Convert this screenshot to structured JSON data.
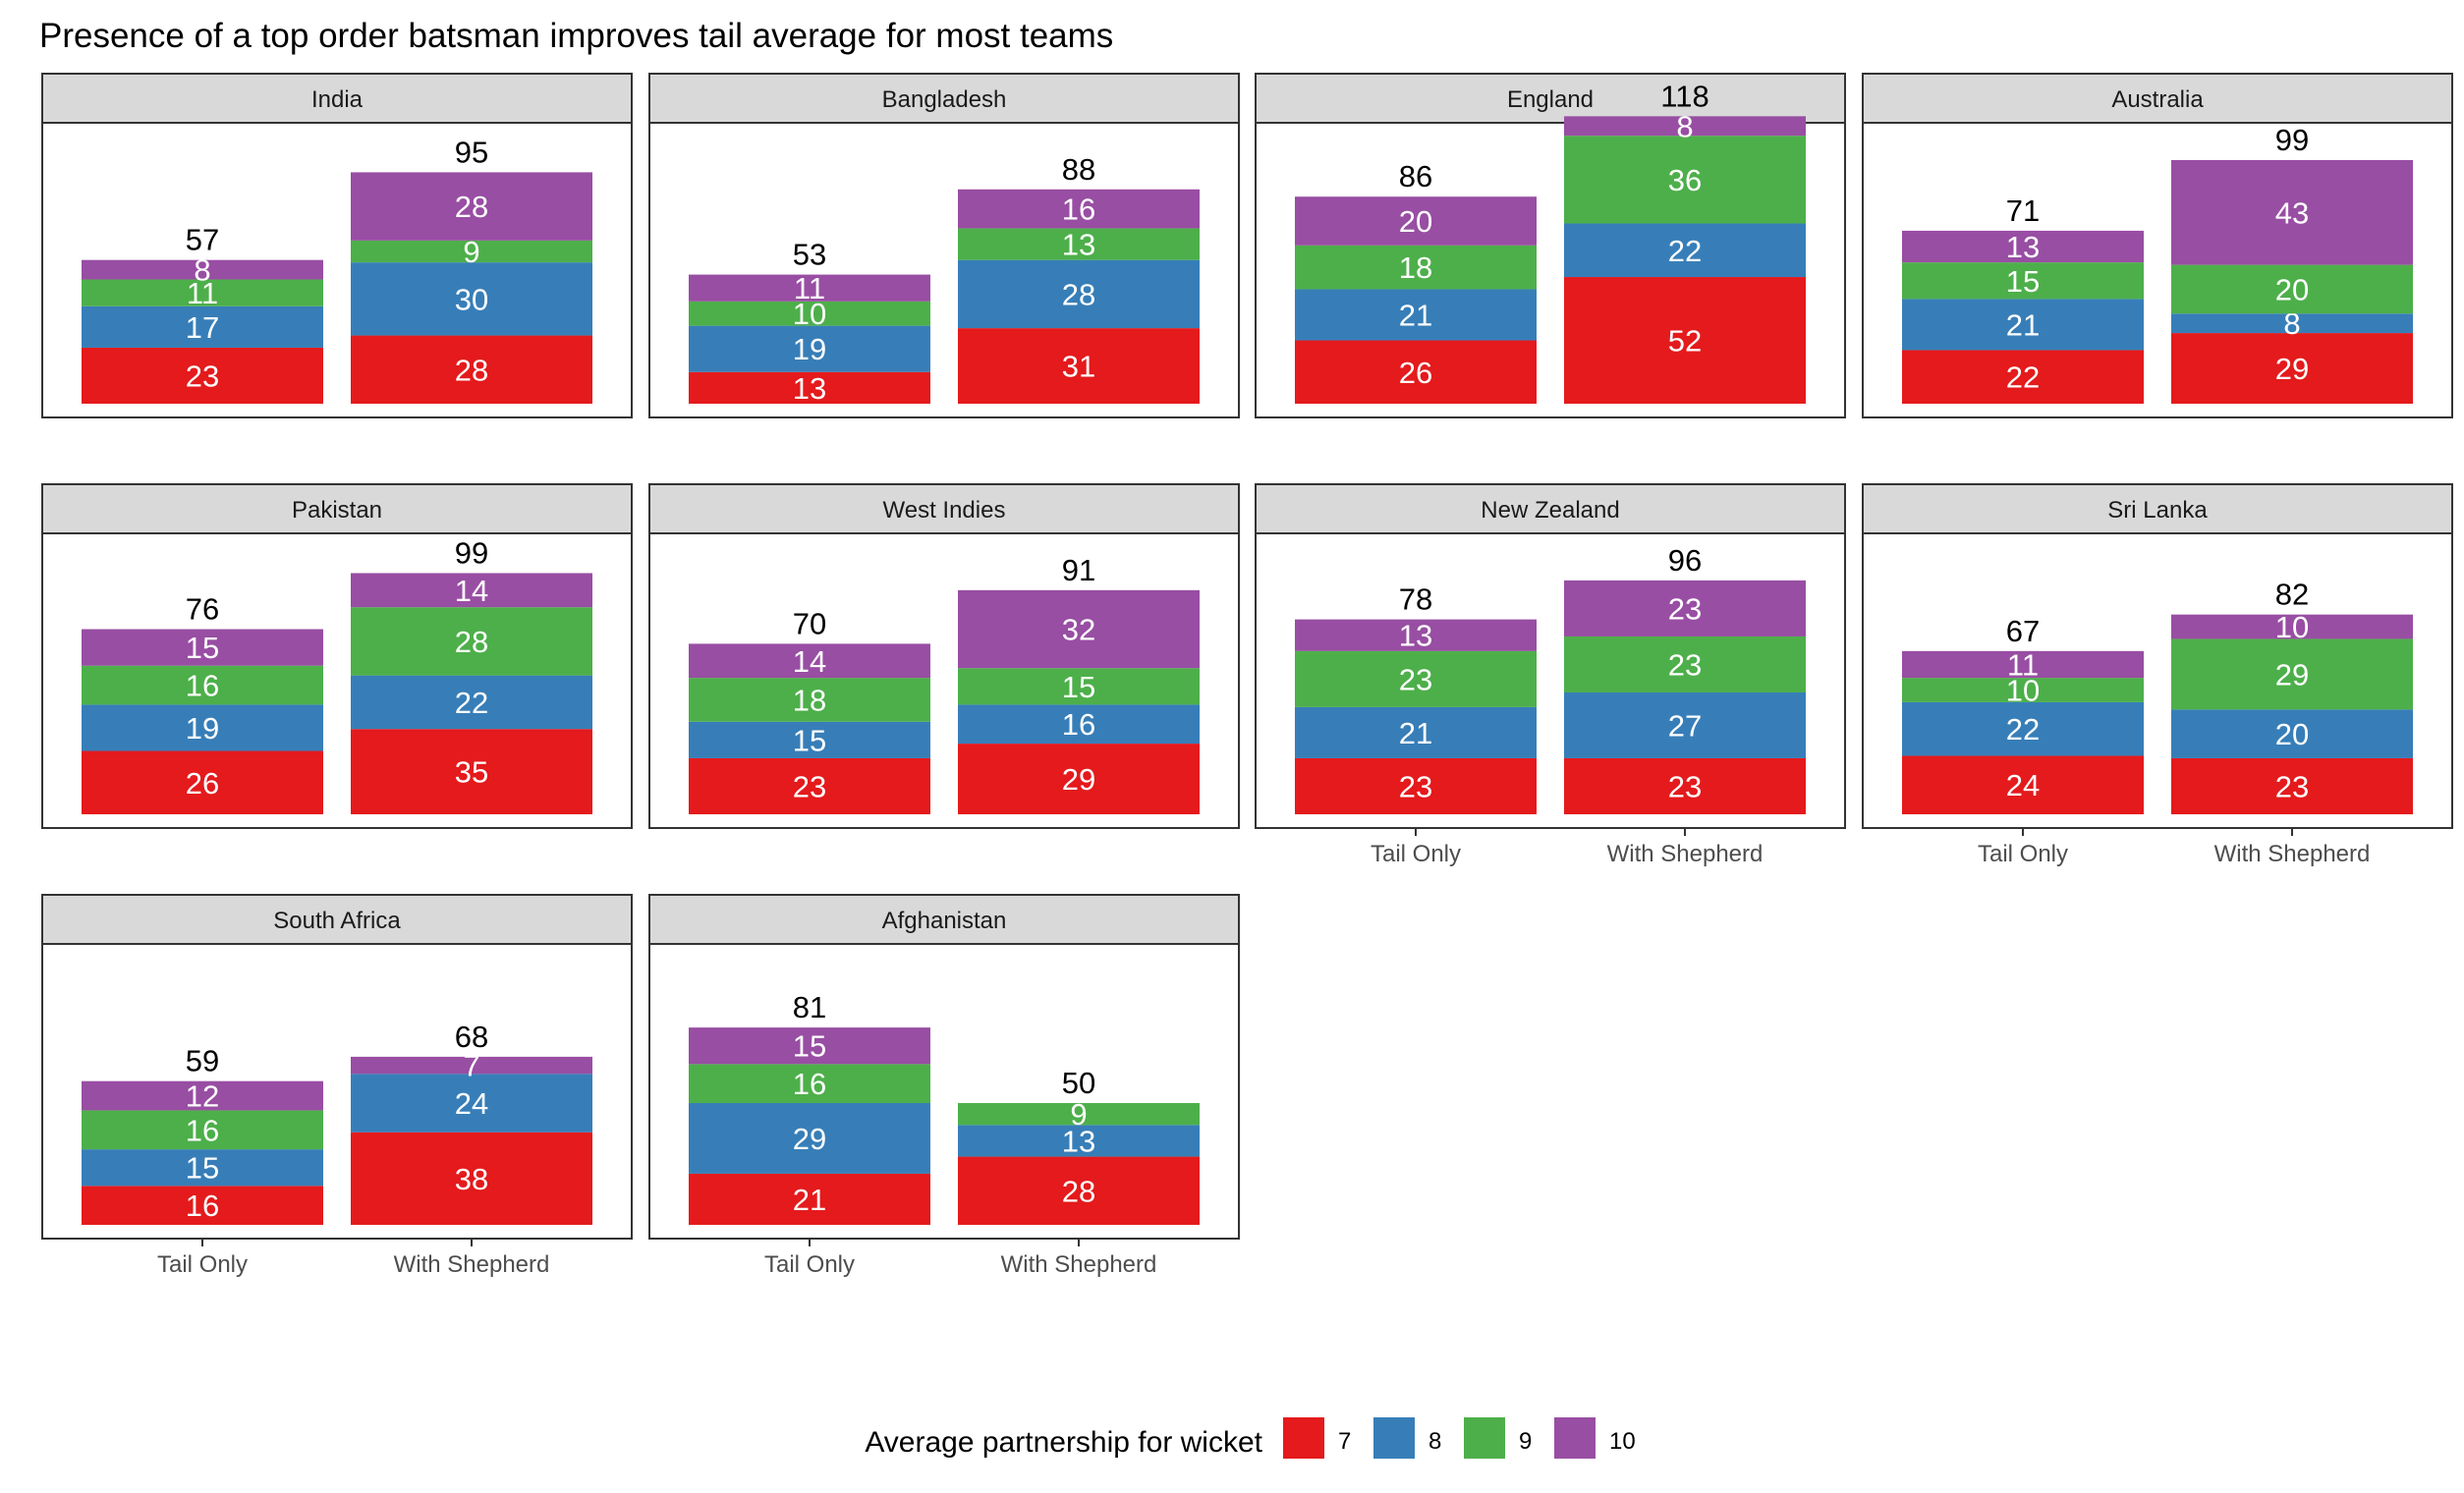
{
  "title": "Presence of a top order batsman improves tail average for most teams",
  "legend": {
    "title": "Average partnership for wicket",
    "placement": "bottom",
    "items": [
      {
        "key": "7",
        "label": "7",
        "color": "#E41A1C"
      },
      {
        "key": "8",
        "label": "8",
        "color": "#377EB8"
      },
      {
        "key": "9",
        "label": "9",
        "color": "#4DAF4A"
      },
      {
        "key": "10",
        "label": "10",
        "color": "#984EA3"
      }
    ]
  },
  "chart_data": {
    "type": "bar",
    "stacked": true,
    "faceted": true,
    "grid": false,
    "categories": [
      "Tail Only",
      "With Shepherd"
    ],
    "series_order": [
      "7",
      "8",
      "9",
      "10"
    ],
    "colors": {
      "7": "#E41A1C",
      "8": "#377EB8",
      "9": "#4DAF4A",
      "10": "#984EA3"
    },
    "facets": [
      {
        "team": "India",
        "bars": [
          {
            "category": "Tail Only",
            "total": 57,
            "values": {
              "7": 23,
              "8": 17,
              "9": 11,
              "10": 8
            }
          },
          {
            "category": "With Shepherd",
            "total": 95,
            "values": {
              "7": 28,
              "8": 30,
              "9": 9,
              "10": 28
            }
          }
        ]
      },
      {
        "team": "Bangladesh",
        "bars": [
          {
            "category": "Tail Only",
            "total": 53,
            "values": {
              "7": 13,
              "8": 19,
              "9": 10,
              "10": 11
            }
          },
          {
            "category": "With Shepherd",
            "total": 88,
            "values": {
              "7": 31,
              "8": 28,
              "9": 13,
              "10": 16
            }
          }
        ]
      },
      {
        "team": "England",
        "bars": [
          {
            "category": "Tail Only",
            "total": 86,
            "values": {
              "7": 26,
              "8": 21,
              "9": 18,
              "10": 20
            }
          },
          {
            "category": "With Shepherd",
            "total": 118,
            "values": {
              "7": 52,
              "8": 22,
              "9": 36,
              "10": 8
            }
          }
        ]
      },
      {
        "team": "Australia",
        "bars": [
          {
            "category": "Tail Only",
            "total": 71,
            "values": {
              "7": 22,
              "8": 21,
              "9": 15,
              "10": 13
            }
          },
          {
            "category": "With Shepherd",
            "total": 99,
            "values": {
              "7": 29,
              "8": 8,
              "9": 20,
              "10": 43
            }
          }
        ]
      },
      {
        "team": "Pakistan",
        "bars": [
          {
            "category": "Tail Only",
            "total": 76,
            "values": {
              "7": 26,
              "8": 19,
              "9": 16,
              "10": 15
            }
          },
          {
            "category": "With Shepherd",
            "total": 99,
            "values": {
              "7": 35,
              "8": 22,
              "9": 28,
              "10": 14
            }
          }
        ]
      },
      {
        "team": "West Indies",
        "bars": [
          {
            "category": "Tail Only",
            "total": 70,
            "values": {
              "7": 23,
              "8": 15,
              "9": 18,
              "10": 14
            }
          },
          {
            "category": "With Shepherd",
            "total": 91,
            "values": {
              "7": 29,
              "8": 16,
              "9": 15,
              "10": 32
            }
          }
        ]
      },
      {
        "team": "New Zealand",
        "bars": [
          {
            "category": "Tail Only",
            "total": 78,
            "values": {
              "7": 23,
              "8": 21,
              "9": 23,
              "10": 13
            }
          },
          {
            "category": "With Shepherd",
            "total": 96,
            "values": {
              "7": 23,
              "8": 27,
              "9": 23,
              "10": 23
            }
          }
        ]
      },
      {
        "team": "Sri Lanka",
        "bars": [
          {
            "category": "Tail Only",
            "total": 67,
            "values": {
              "7": 24,
              "8": 22,
              "9": 10,
              "10": 11
            }
          },
          {
            "category": "With Shepherd",
            "total": 82,
            "values": {
              "7": 23,
              "8": 20,
              "9": 29,
              "10": 10
            }
          }
        ]
      },
      {
        "team": "South Africa",
        "bars": [
          {
            "category": "Tail Only",
            "total": 59,
            "values": {
              "7": 16,
              "8": 15,
              "9": 16,
              "10": 12
            }
          },
          {
            "category": "With Shepherd",
            "total": 68,
            "values": {
              "7": 38,
              "8": 24,
              "9": 0,
              "10": 7
            }
          }
        ]
      },
      {
        "team": "Afghanistan",
        "bars": [
          {
            "category": "Tail Only",
            "total": 81,
            "values": {
              "7": 21,
              "8": 29,
              "9": 16,
              "10": 15
            }
          },
          {
            "category": "With Shepherd",
            "total": 50,
            "values": {
              "7": 28,
              "8": 13,
              "9": 9,
              "10": 0
            }
          }
        ]
      }
    ]
  }
}
